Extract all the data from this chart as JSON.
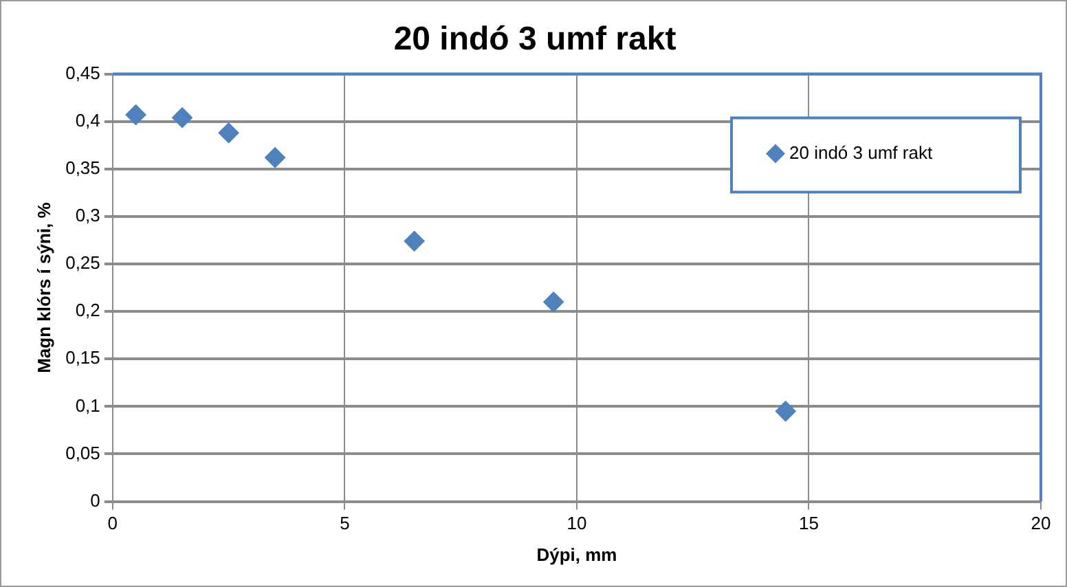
{
  "chart_data": {
    "type": "scatter",
    "title": "20 indó 3 umf rakt",
    "xlabel": "Dýpi, mm",
    "ylabel": "Magn klórs í sýni, %",
    "series": [
      {
        "name": "20 indó 3 umf rakt",
        "color": "#4f81bd",
        "x": [
          0.5,
          1.5,
          2.5,
          3.5,
          6.5,
          9.5,
          14.5
        ],
        "values": [
          0.407,
          0.404,
          0.388,
          0.362,
          0.274,
          0.21,
          0.095
        ]
      }
    ],
    "xlim": [
      0,
      20
    ],
    "xticks": [
      0,
      5,
      10,
      15,
      20
    ],
    "ylim": [
      0,
      0.45
    ],
    "yticks": [
      0,
      {
        "value": 0.05,
        "label": "0,05"
      },
      {
        "value": 0.1,
        "label": "0,1"
      },
      {
        "value": 0.15,
        "label": "0,15"
      },
      {
        "value": 0.2,
        "label": "0,2"
      },
      {
        "value": 0.25,
        "label": "0,25"
      },
      {
        "value": 0.3,
        "label": "0,3"
      },
      {
        "value": 0.35,
        "label": "0,35"
      },
      {
        "value": 0.4,
        "label": "0,4"
      },
      {
        "value": 0.45,
        "label": "0,45"
      }
    ],
    "grid": true,
    "legend": "top right",
    "marker": "diamond"
  }
}
